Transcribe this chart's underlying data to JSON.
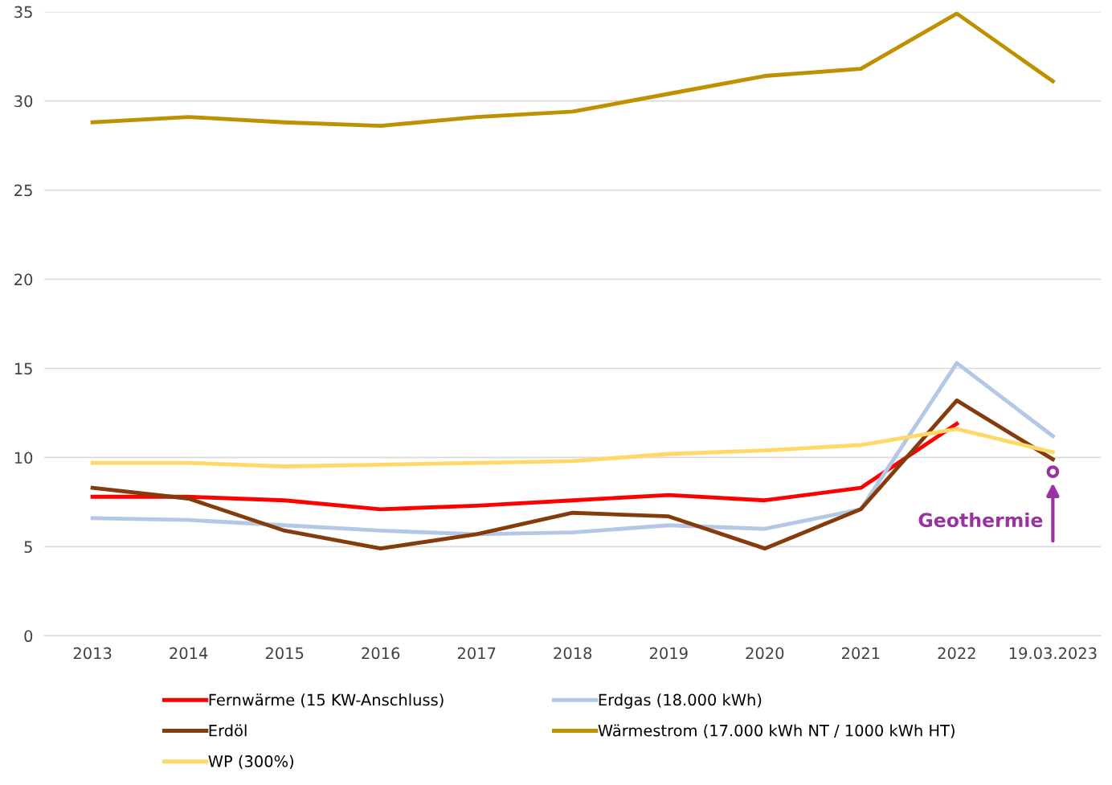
{
  "chart_data": {
    "type": "line",
    "categories": [
      "2013",
      "2014",
      "2015",
      "2016",
      "2017",
      "2018",
      "2019",
      "2020",
      "2021",
      "2022",
      "19.03.2023"
    ],
    "series": [
      {
        "name": "Fernwärme (15 KW-Anschluss)",
        "color": "#ff0000",
        "values": [
          7.8,
          7.8,
          7.6,
          7.1,
          7.3,
          7.6,
          7.9,
          7.6,
          8.3,
          11.9,
          null
        ]
      },
      {
        "name": "Erdgas (18.000 kWh)",
        "color": "#b4c7e7",
        "values": [
          6.6,
          6.5,
          6.2,
          5.9,
          5.7,
          5.8,
          6.2,
          6.0,
          7.1,
          15.3,
          11.2
        ]
      },
      {
        "name": "Erdöl",
        "color": "#843c0c",
        "values": [
          8.3,
          7.7,
          5.9,
          4.9,
          5.7,
          6.9,
          6.7,
          4.9,
          7.1,
          13.2,
          9.9
        ]
      },
      {
        "name": "Wärmestrom (17.000 kWh NT / 1000 kWh HT)",
        "color": "#bf9000",
        "values": [
          28.8,
          29.1,
          28.8,
          28.6,
          29.1,
          29.4,
          30.4,
          31.4,
          31.8,
          34.9,
          31.1
        ]
      },
      {
        "name": "WP (300%)",
        "color": "#ffd966",
        "values": [
          9.7,
          9.7,
          9.5,
          9.6,
          9.7,
          9.8,
          10.2,
          10.4,
          10.7,
          11.6,
          10.3
        ]
      },
      {
        "type": "scatter",
        "color": "#9933a0",
        "marker": "circle",
        "values": [
          null,
          null,
          null,
          null,
          null,
          null,
          null,
          null,
          null,
          null,
          9.2
        ]
      }
    ],
    "annotations": [
      {
        "text": "Geothermie",
        "x": "19.03.2023",
        "y": 9.2
      }
    ],
    "ylim": [
      0,
      35
    ],
    "yticks": [
      0,
      5,
      10,
      15,
      20,
      25,
      30,
      35
    ],
    "grid": "y",
    "legend": "bottom",
    "marker": "none",
    "line_style": "solid"
  }
}
